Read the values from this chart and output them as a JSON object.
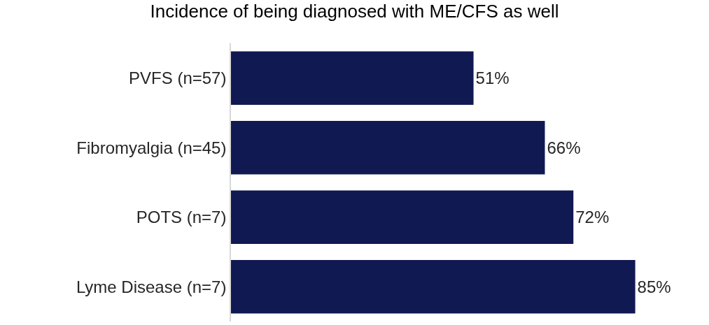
{
  "chart_data": {
    "type": "bar",
    "orientation": "horizontal",
    "title": "Incidence of being diagnosed with ME/CFS as well",
    "categories": [
      "PVFS (n=57)",
      "Fibromyalgia (n=45)",
      "POTS (n=7)",
      "Lyme Disease (n=7)"
    ],
    "values": [
      51,
      66,
      72,
      85
    ],
    "value_labels": [
      "51%",
      "66%",
      "72%",
      "85%"
    ],
    "color": "#111952",
    "tick_labels": "y"
  }
}
